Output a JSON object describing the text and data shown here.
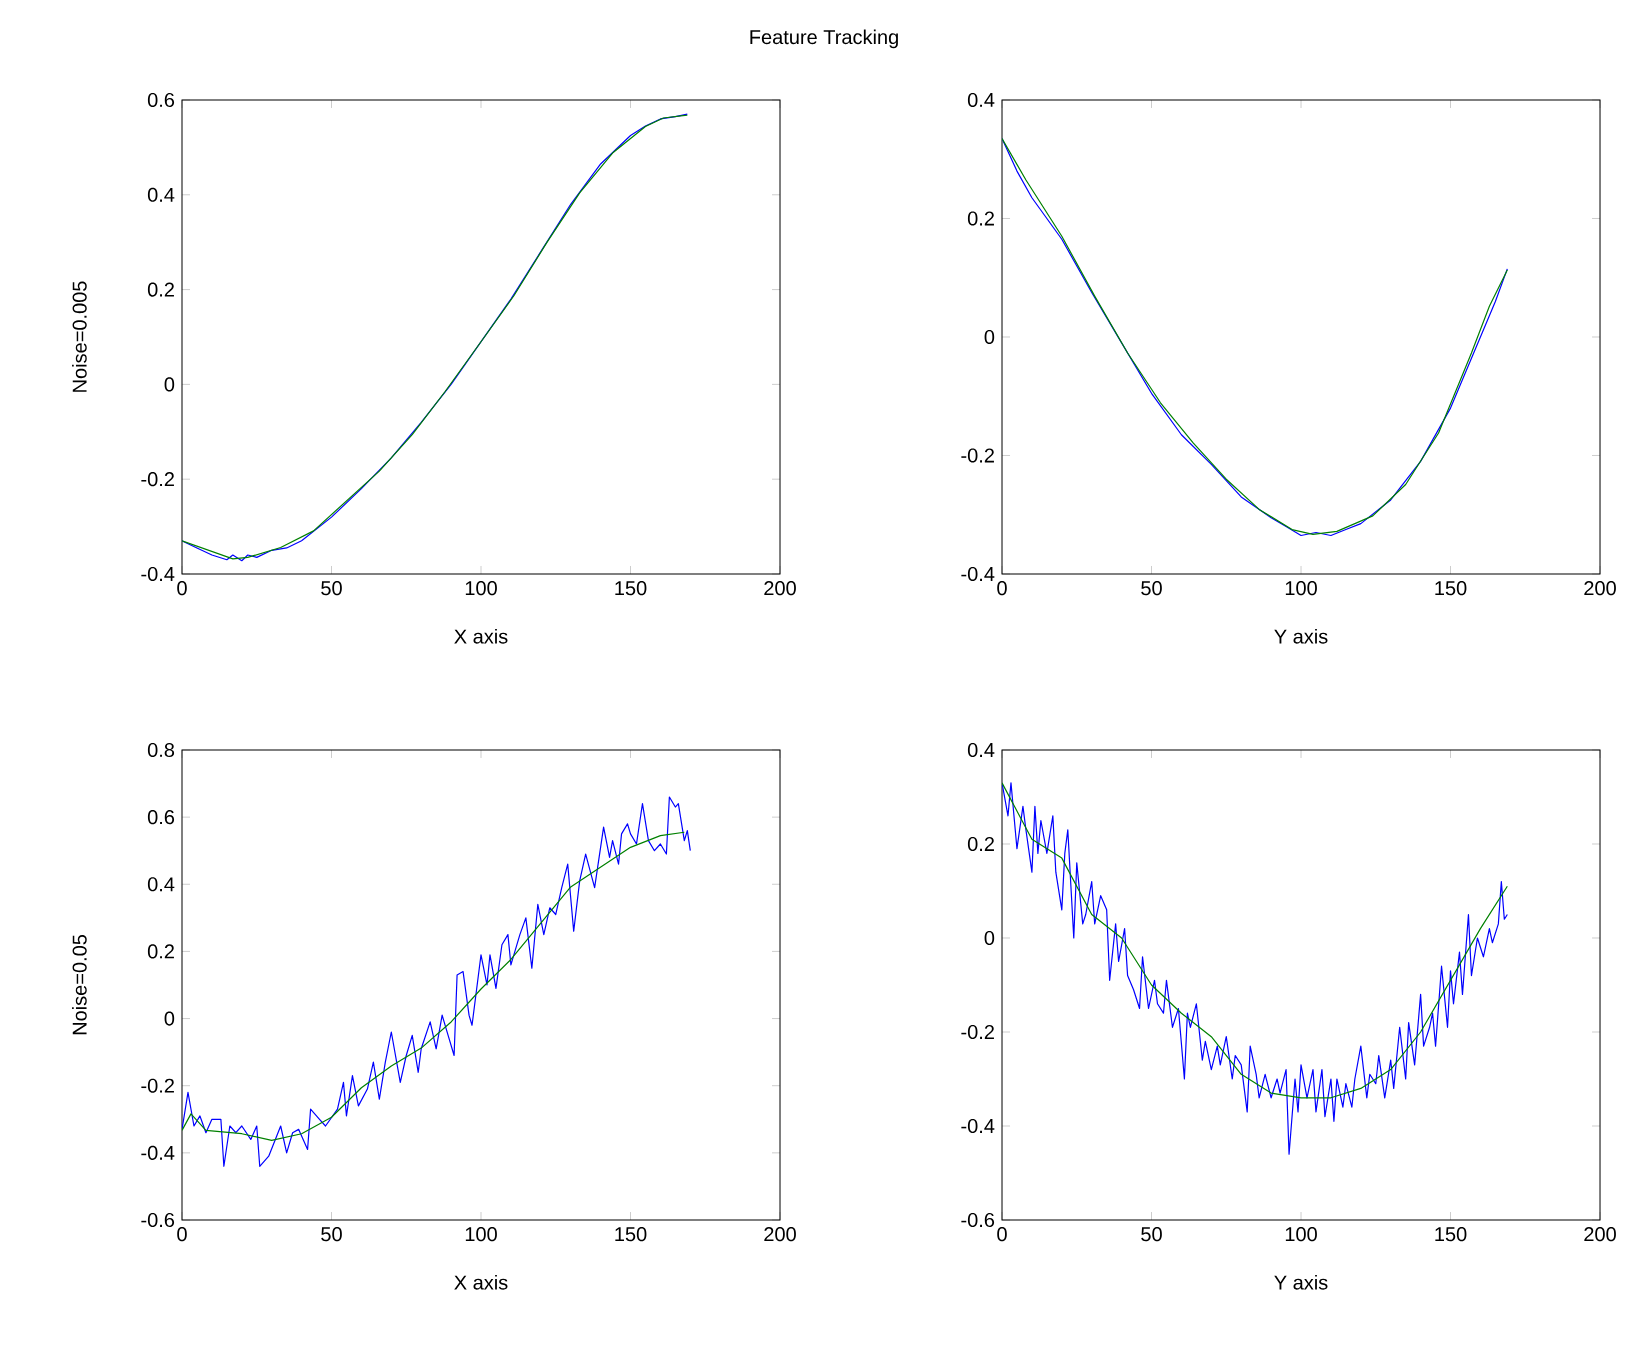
{
  "chart_data": [
    {
      "type": "line",
      "title": "Feature Tracking",
      "xlabel": "X axis",
      "ylabel": "Noise=0.005",
      "xlim": [
        0,
        200
      ],
      "xticks": [
        0,
        50,
        100,
        150,
        200
      ],
      "ylim": [
        -0.4,
        0.6
      ],
      "yticks": [
        -0.4,
        -0.2,
        0,
        0.2,
        0.4,
        0.6
      ],
      "series": [
        {
          "color": "#0000ff",
          "x": [
            0,
            5,
            10,
            15,
            17,
            20,
            22,
            25,
            30,
            35,
            40,
            50,
            60,
            70,
            80,
            90,
            100,
            110,
            120,
            130,
            140,
            150,
            155,
            160,
            165,
            169
          ],
          "values": [
            -0.33,
            -0.345,
            -0.36,
            -0.37,
            -0.36,
            -0.372,
            -0.36,
            -0.365,
            -0.35,
            -0.345,
            -0.33,
            -0.28,
            -0.22,
            -0.155,
            -0.08,
            0.0,
            0.09,
            0.18,
            0.28,
            0.38,
            0.465,
            0.525,
            0.545,
            0.56,
            0.565,
            0.57
          ]
        },
        {
          "color": "#008000",
          "x": [
            0,
            17,
            22,
            33,
            44,
            55,
            66,
            77,
            88,
            100,
            111,
            122,
            133,
            144,
            155,
            161,
            169
          ],
          "values": [
            -0.33,
            -0.368,
            -0.365,
            -0.344,
            -0.309,
            -0.246,
            -0.183,
            -0.106,
            -0.015,
            0.09,
            0.187,
            0.299,
            0.404,
            0.488,
            0.544,
            0.562,
            0.568
          ]
        }
      ]
    },
    {
      "type": "line",
      "xlabel": "Y axis",
      "xlim": [
        0,
        200
      ],
      "xticks": [
        0,
        50,
        100,
        150,
        200
      ],
      "ylim": [
        -0.4,
        0.4
      ],
      "yticks": [
        -0.4,
        -0.2,
        0,
        0.2,
        0.4
      ],
      "series": [
        {
          "color": "#0000ff",
          "x": [
            0,
            5,
            10,
            20,
            30,
            40,
            50,
            60,
            70,
            80,
            90,
            95,
            100,
            105,
            110,
            115,
            120,
            130,
            140,
            150,
            160,
            165,
            169
          ],
          "values": [
            0.335,
            0.28,
            0.235,
            0.165,
            0.075,
            -0.01,
            -0.095,
            -0.165,
            -0.215,
            -0.27,
            -0.305,
            -0.32,
            -0.335,
            -0.33,
            -0.335,
            -0.325,
            -0.315,
            -0.275,
            -0.21,
            -0.12,
            0.0,
            0.06,
            0.115
          ]
        },
        {
          "color": "#008000",
          "x": [
            0,
            8,
            20,
            31,
            42,
            53,
            64,
            75,
            86,
            97,
            104,
            112,
            124,
            135,
            146,
            157,
            163,
            169
          ],
          "values": [
            0.335,
            0.265,
            0.17,
            0.069,
            -0.027,
            -0.111,
            -0.179,
            -0.24,
            -0.291,
            -0.325,
            -0.333,
            -0.328,
            -0.302,
            -0.249,
            -0.162,
            -0.027,
            0.052,
            0.113
          ]
        }
      ]
    },
    {
      "type": "line",
      "xlabel": "X axis",
      "ylabel": "Noise=0.05",
      "xlim": [
        0,
        200
      ],
      "xticks": [
        0,
        50,
        100,
        150,
        200
      ],
      "ylim": [
        -0.6,
        0.8
      ],
      "yticks": [
        -0.6,
        -0.4,
        -0.2,
        0,
        0.2,
        0.4,
        0.6,
        0.8
      ],
      "series": [
        {
          "color": "#0000ff",
          "x": [
            0,
            2,
            4,
            6,
            8,
            10,
            13,
            14,
            16,
            18,
            20,
            23,
            25,
            26,
            29,
            33,
            35,
            37,
            39,
            42,
            43,
            46,
            48,
            52,
            54,
            55,
            57,
            59,
            62,
            64,
            66,
            68,
            70,
            73,
            75,
            77,
            79,
            80,
            83,
            85,
            87,
            89,
            91,
            92,
            94,
            96,
            97,
            100,
            102,
            103,
            105,
            107,
            109,
            110,
            113,
            115,
            117,
            119,
            121,
            123,
            125,
            127,
            129,
            131,
            133,
            135,
            138,
            141,
            143,
            144,
            146,
            147,
            149,
            150,
            152,
            154,
            156,
            158,
            160,
            162,
            163,
            165,
            166,
            168,
            169,
            170
          ],
          "values": [
            -0.33,
            -0.22,
            -0.32,
            -0.29,
            -0.34,
            -0.3,
            -0.3,
            -0.44,
            -0.32,
            -0.34,
            -0.32,
            -0.36,
            -0.32,
            -0.44,
            -0.41,
            -0.32,
            -0.4,
            -0.34,
            -0.33,
            -0.39,
            -0.27,
            -0.3,
            -0.32,
            -0.27,
            -0.19,
            -0.29,
            -0.17,
            -0.26,
            -0.21,
            -0.13,
            -0.24,
            -0.13,
            -0.04,
            -0.19,
            -0.11,
            -0.05,
            -0.16,
            -0.09,
            -0.01,
            -0.09,
            0.01,
            -0.05,
            -0.11,
            0.13,
            0.14,
            0.01,
            -0.02,
            0.19,
            0.1,
            0.19,
            0.09,
            0.22,
            0.25,
            0.16,
            0.25,
            0.3,
            0.15,
            0.34,
            0.25,
            0.33,
            0.31,
            0.39,
            0.46,
            0.26,
            0.41,
            0.49,
            0.39,
            0.57,
            0.48,
            0.53,
            0.46,
            0.55,
            0.58,
            0.55,
            0.52,
            0.64,
            0.53,
            0.5,
            0.52,
            0.49,
            0.66,
            0.63,
            0.64,
            0.53,
            0.56,
            0.5
          ]
        },
        {
          "color": "#008000",
          "x": [
            0,
            3,
            8,
            20,
            30,
            40,
            50,
            60,
            70,
            80,
            90,
            100,
            110,
            120,
            130,
            140,
            150,
            160,
            168
          ],
          "values": [
            -0.333,
            -0.284,
            -0.333,
            -0.343,
            -0.363,
            -0.343,
            -0.294,
            -0.206,
            -0.141,
            -0.088,
            -0.01,
            0.088,
            0.176,
            0.284,
            0.392,
            0.451,
            0.51,
            0.545,
            0.555
          ]
        }
      ]
    },
    {
      "type": "line",
      "xlabel": "Y axis",
      "xlim": [
        0,
        200
      ],
      "xticks": [
        0,
        50,
        100,
        150,
        200
      ],
      "ylim": [
        -0.6,
        0.4
      ],
      "yticks": [
        -0.6,
        -0.4,
        -0.2,
        0,
        0.2,
        0.4
      ],
      "series": [
        {
          "color": "#0000ff",
          "x": [
            0,
            2,
            3,
            5,
            7,
            8,
            10,
            11,
            12,
            13,
            15,
            17,
            18,
            20,
            21,
            22,
            24,
            25,
            27,
            28,
            30,
            31,
            33,
            35,
            36,
            38,
            39,
            41,
            42,
            44,
            46,
            47,
            49,
            51,
            52,
            54,
            55,
            57,
            59,
            61,
            62,
            63,
            65,
            67,
            68,
            70,
            72,
            73,
            75,
            77,
            78,
            80,
            82,
            83,
            85,
            86,
            88,
            90,
            92,
            93,
            95,
            96,
            98,
            99,
            100,
            102,
            104,
            105,
            107,
            108,
            110,
            111,
            112,
            114,
            115,
            117,
            118,
            120,
            122,
            123,
            125,
            126,
            128,
            130,
            131,
            133,
            135,
            136,
            138,
            140,
            141,
            143,
            144,
            145,
            147,
            149,
            150,
            151,
            153,
            154,
            156,
            157,
            159,
            161,
            163,
            164,
            166,
            167,
            168,
            169
          ],
          "values": [
            0.33,
            0.26,
            0.33,
            0.19,
            0.28,
            0.23,
            0.14,
            0.28,
            0.18,
            0.25,
            0.18,
            0.26,
            0.14,
            0.06,
            0.18,
            0.23,
            0.0,
            0.16,
            0.03,
            0.05,
            0.12,
            0.03,
            0.09,
            0.06,
            -0.09,
            0.03,
            -0.05,
            0.02,
            -0.08,
            -0.11,
            -0.15,
            -0.04,
            -0.15,
            -0.09,
            -0.14,
            -0.16,
            -0.09,
            -0.19,
            -0.15,
            -0.3,
            -0.16,
            -0.19,
            -0.14,
            -0.26,
            -0.22,
            -0.28,
            -0.23,
            -0.27,
            -0.21,
            -0.3,
            -0.25,
            -0.27,
            -0.37,
            -0.23,
            -0.29,
            -0.34,
            -0.29,
            -0.34,
            -0.3,
            -0.33,
            -0.28,
            -0.46,
            -0.3,
            -0.37,
            -0.27,
            -0.34,
            -0.28,
            -0.37,
            -0.28,
            -0.38,
            -0.3,
            -0.39,
            -0.3,
            -0.36,
            -0.31,
            -0.36,
            -0.3,
            -0.23,
            -0.34,
            -0.29,
            -0.31,
            -0.25,
            -0.34,
            -0.26,
            -0.32,
            -0.19,
            -0.3,
            -0.18,
            -0.27,
            -0.12,
            -0.23,
            -0.19,
            -0.16,
            -0.23,
            -0.06,
            -0.19,
            -0.07,
            -0.14,
            -0.03,
            -0.12,
            0.05,
            -0.08,
            0.0,
            -0.04,
            0.02,
            -0.01,
            0.03,
            0.12,
            0.04,
            0.05
          ]
        },
        {
          "color": "#008000",
          "x": [
            0,
            10,
            20,
            30,
            40,
            50,
            60,
            70,
            80,
            90,
            100,
            110,
            120,
            130,
            140,
            150,
            160,
            169
          ],
          "values": [
            0.33,
            0.21,
            0.17,
            0.05,
            0.0,
            -0.1,
            -0.16,
            -0.21,
            -0.29,
            -0.33,
            -0.34,
            -0.34,
            -0.32,
            -0.28,
            -0.2,
            -0.09,
            0.02,
            0.11
          ]
        }
      ]
    }
  ]
}
